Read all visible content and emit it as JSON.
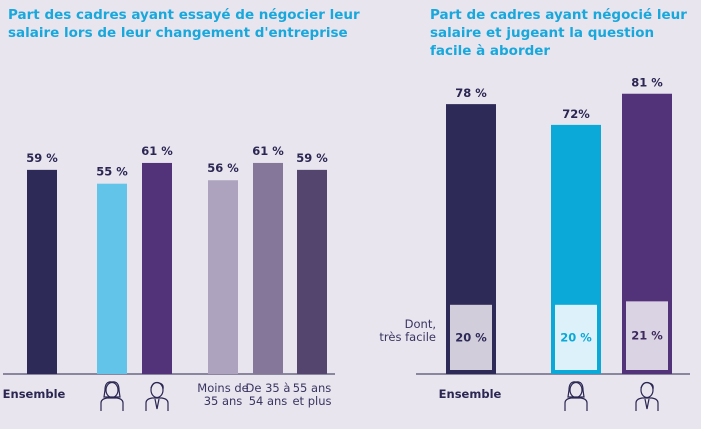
{
  "chart_data": [
    {
      "type": "bar",
      "title": "Part des cadres ayant essayé de négocier leur salaire lors de leur changement d'entreprise",
      "categories": [
        "Ensemble",
        "Femmes (icon)",
        "Hommes (icon)",
        "Moins de 35 ans",
        "De 35 à 54 ans",
        "55 ans et plus"
      ],
      "category_labels": [
        "Ensemble",
        "",
        "",
        "Moins de\n35 ans",
        "De 35 à\n54 ans",
        "55 ans\net plus"
      ],
      "category_icons": [
        null,
        "woman-icon",
        "man-icon",
        null,
        null,
        null
      ],
      "values": [
        59,
        55,
        61,
        56,
        61,
        59
      ],
      "data_labels": [
        "59 %",
        "55 %",
        "61 %",
        "56 %",
        "61 %",
        "59 %"
      ],
      "colors": [
        "#2e2a58",
        "#62c4e8",
        "#52337a",
        "#ada3bf",
        "#85779a",
        "#54456f"
      ],
      "unit": "%",
      "ylim": [
        0,
        100
      ],
      "grid": false
    },
    {
      "type": "bar",
      "title": "Part de cadres ayant négocié leur salaire et jugeant la question facile à aborder",
      "categories": [
        "Ensemble",
        "Femmes (icon)",
        "Hommes (icon)"
      ],
      "category_labels": [
        "Ensemble",
        "",
        ""
      ],
      "category_icons": [
        null,
        "woman-icon",
        "man-icon"
      ],
      "series": [
        {
          "values": [
            78,
            72,
            81
          ],
          "data_labels": [
            "78 %",
            "72%",
            "81 %"
          ]
        },
        {
          "name": "Dont, très facile",
          "values": [
            20,
            20,
            21
          ],
          "data_labels": [
            "20 %",
            "20 %",
            "21 %"
          ]
        }
      ],
      "inner_label": "Dont,\ntrès facile",
      "colors": [
        "#2e2a58",
        "#0ba9d8",
        "#52337a"
      ],
      "inner_fill": [
        "#d2cdda",
        "#dcf1fa",
        "#d9d3e3"
      ],
      "inner_text": [
        "#2e2a58",
        "#0ba9d8",
        "#3e2a5e"
      ],
      "unit": "%",
      "ylim": [
        0,
        100
      ],
      "grid": false
    }
  ]
}
